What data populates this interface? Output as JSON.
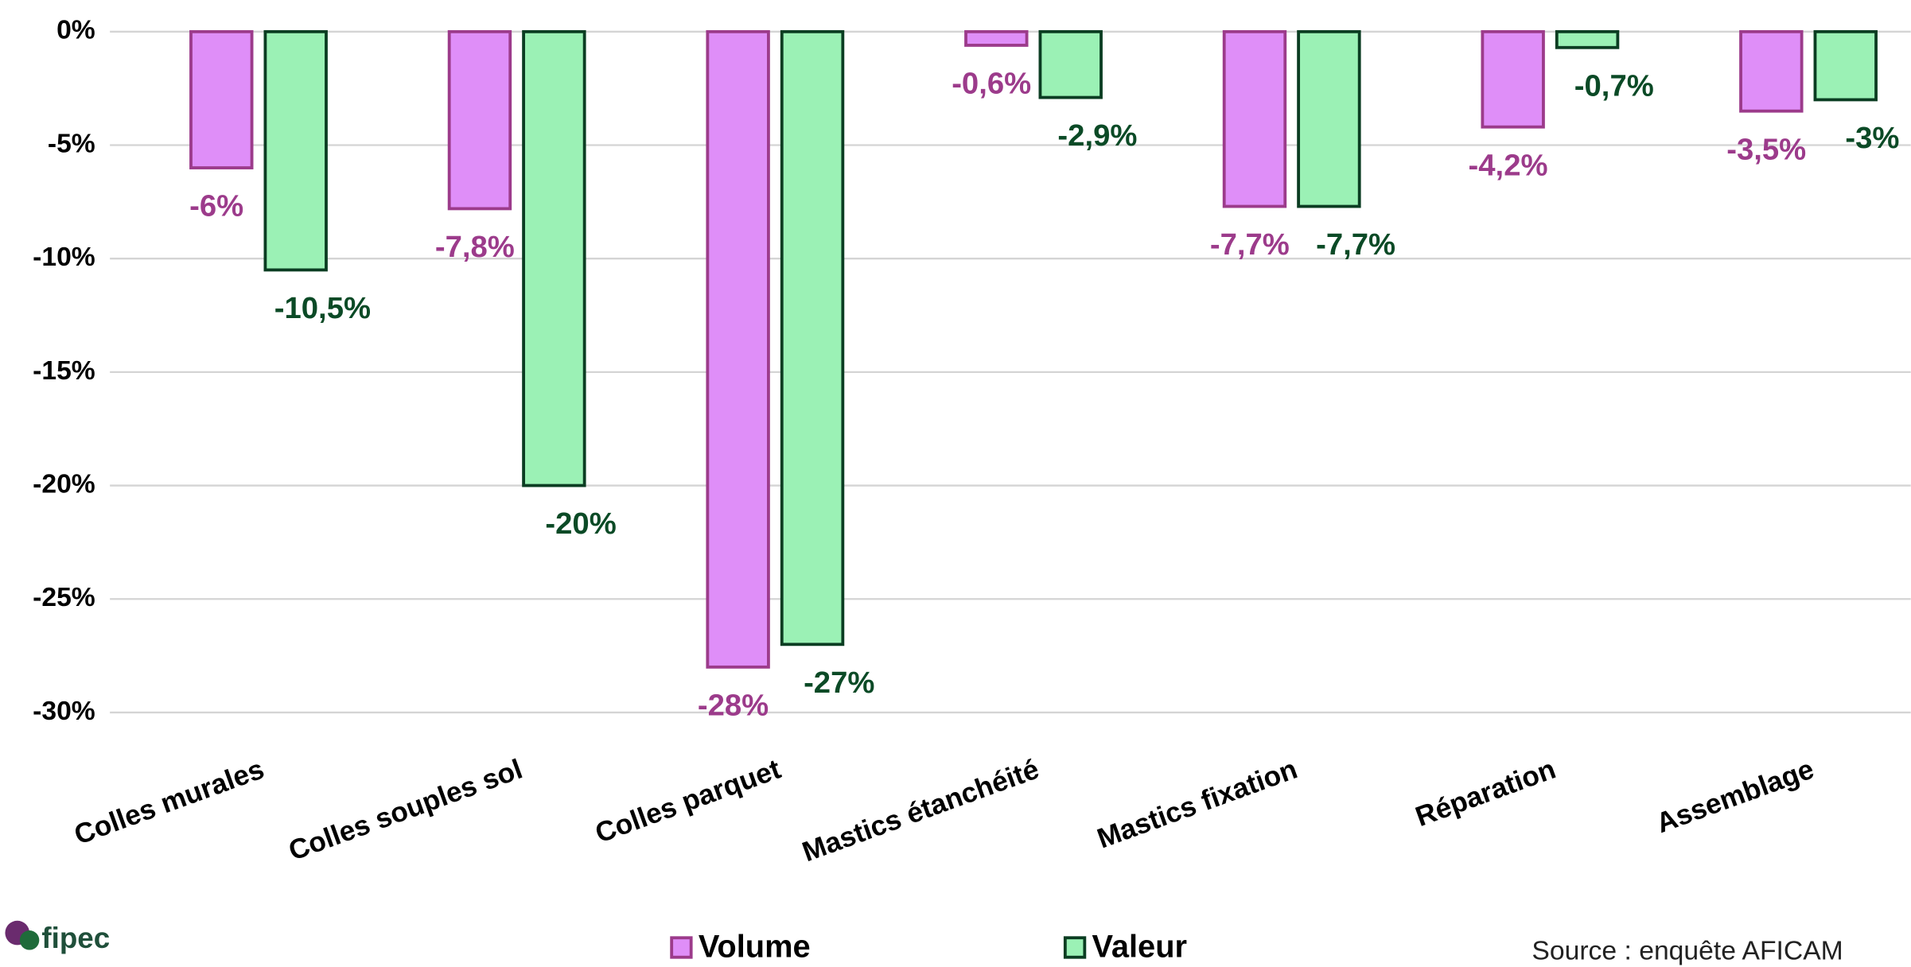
{
  "chart_data": {
    "type": "bar",
    "categories": [
      "Colles murales",
      "Colles souples sol",
      "Colles parquet",
      "Mastics étanchéité",
      "Mastics fixation",
      "Réparation",
      "Assemblage"
    ],
    "series": [
      {
        "name": "Volume",
        "color": "#df8ef8",
        "stroke": "#9c3b8b",
        "label_color": "#9c3b8b",
        "values": [
          -6,
          -7.8,
          -28,
          -0.6,
          -7.7,
          -4.2,
          -3.5
        ],
        "value_labels": [
          "-6%",
          "-7,8%",
          "-28%",
          "-0,6%",
          "-7,7%",
          "-4,2%",
          "-3,5%"
        ]
      },
      {
        "name": "Valeur",
        "color": "#9bf1b5",
        "stroke": "#0b3d22",
        "label_color": "#0b4a26",
        "values": [
          -10.5,
          -20,
          -27,
          -2.9,
          -7.7,
          -0.7,
          -3
        ],
        "value_labels": [
          "-10,5%",
          "-20%",
          "-27%",
          "-2,9%",
          "-7,7%",
          "-0,7%",
          "-3%"
        ]
      }
    ],
    "ylim": [
      -30,
      0
    ],
    "yticks": [
      {
        "value": 0,
        "label": "0%"
      },
      {
        "value": -5,
        "label": "-5%"
      },
      {
        "value": -10,
        "label": "-10%"
      },
      {
        "value": -15,
        "label": "-15%"
      },
      {
        "value": -20,
        "label": "-20%"
      },
      {
        "value": -25,
        "label": "-25%"
      },
      {
        "value": -30,
        "label": "-30%"
      }
    ],
    "grid": true,
    "source": "Source : enquête AFICAM",
    "logo": "fipec"
  }
}
